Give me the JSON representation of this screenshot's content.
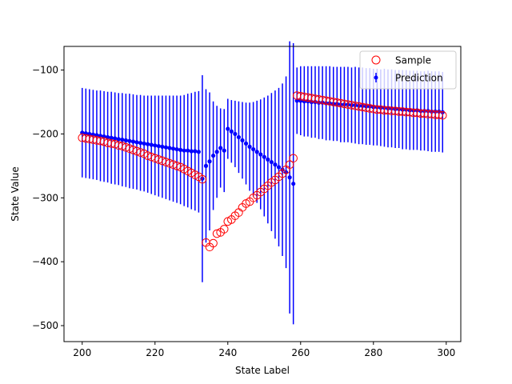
{
  "chart_data": {
    "type": "scatter",
    "title": "",
    "xlabel": "State Label",
    "ylabel": "State Value",
    "xlim": [
      195,
      304
    ],
    "ylim": [
      -525,
      -63
    ],
    "xticks": [
      200,
      220,
      240,
      260,
      280,
      300
    ],
    "yticks": [
      -500,
      -400,
      -300,
      -200,
      -100
    ],
    "xtick_labels": [
      "200",
      "220",
      "240",
      "260",
      "280",
      "300"
    ],
    "ytick_labels": [
      "−500",
      "−400",
      "−300",
      "−200",
      "−100"
    ],
    "grid": false,
    "legend_position": "top-right",
    "legend_entries": [
      "Sample",
      "Prediction"
    ],
    "colors": {
      "sample": "#ff0000",
      "prediction": "#0000ff",
      "axes": "#000000"
    },
    "series": [
      {
        "name": "Sample",
        "marker": "hollow-circle",
        "x": [
          200,
          201,
          202,
          203,
          204,
          205,
          206,
          207,
          208,
          209,
          210,
          211,
          212,
          213,
          214,
          215,
          216,
          217,
          218,
          219,
          220,
          221,
          222,
          223,
          224,
          225,
          226,
          227,
          228,
          229,
          230,
          231,
          232,
          233,
          234,
          235,
          236,
          237,
          238,
          239,
          240,
          241,
          242,
          243,
          244,
          245,
          246,
          247,
          248,
          249,
          250,
          251,
          252,
          253,
          254,
          255,
          256,
          257,
          258,
          259,
          260,
          261,
          262,
          263,
          264,
          265,
          266,
          267,
          268,
          269,
          270,
          271,
          272,
          273,
          274,
          275,
          276,
          277,
          278,
          279,
          280,
          281,
          282,
          283,
          284,
          285,
          286,
          287,
          288,
          289,
          290,
          291,
          292,
          293,
          294,
          295,
          296,
          297,
          298,
          299
        ],
        "y": [
          -206,
          -207,
          -208,
          -209,
          -210,
          -211,
          -212,
          -214,
          -215,
          -216,
          -218,
          -219,
          -221,
          -223,
          -225,
          -227,
          -229,
          -231,
          -234,
          -236,
          -238,
          -240,
          -242,
          -244,
          -246,
          -248,
          -250,
          -252,
          -255,
          -258,
          -261,
          -264,
          -267,
          -271,
          -370,
          -377,
          -371,
          -356,
          -354,
          -349,
          -337,
          -334,
          -328,
          -323,
          -315,
          -309,
          -306,
          -300,
          -296,
          -291,
          -286,
          -281,
          -276,
          -272,
          -267,
          -262,
          -256,
          -248,
          -238,
          -140,
          -141,
          -142,
          -143,
          -144,
          -145,
          -146,
          -147,
          -148,
          -149,
          -150,
          -151,
          -152,
          -153,
          -154,
          -155,
          -156,
          -157,
          -158,
          -159,
          -160,
          -161,
          -162,
          -162,
          -163,
          -163,
          -164,
          -164,
          -165,
          -165,
          -166,
          -166,
          -167,
          -167,
          -168,
          -168,
          -169,
          -169,
          -170,
          -170,
          -171
        ]
      },
      {
        "name": "Prediction",
        "marker": "dot-errorbar",
        "x": [
          200,
          201,
          202,
          203,
          204,
          205,
          206,
          207,
          208,
          209,
          210,
          211,
          212,
          213,
          214,
          215,
          216,
          217,
          218,
          219,
          220,
          221,
          222,
          223,
          224,
          225,
          226,
          227,
          228,
          229,
          230,
          231,
          232,
          233,
          234,
          235,
          236,
          237,
          238,
          239,
          240,
          241,
          242,
          243,
          244,
          245,
          246,
          247,
          248,
          249,
          250,
          251,
          252,
          253,
          254,
          255,
          256,
          257,
          258,
          259,
          260,
          261,
          262,
          263,
          264,
          265,
          266,
          267,
          268,
          269,
          270,
          271,
          272,
          273,
          274,
          275,
          276,
          277,
          278,
          279,
          280,
          281,
          282,
          283,
          284,
          285,
          286,
          287,
          288,
          289,
          290,
          291,
          292,
          293,
          294,
          295,
          296,
          297,
          298,
          299
        ],
        "y": [
          -198,
          -199,
          -200,
          -201,
          -202,
          -203,
          -204,
          -205,
          -206,
          -207,
          -208,
          -209,
          -210,
          -211,
          -212,
          -213,
          -214,
          -215,
          -216,
          -217,
          -218,
          -219,
          -220,
          -221,
          -222,
          -223,
          -224,
          -225,
          -226,
          -226,
          -227,
          -227,
          -228,
          -270,
          -250,
          -243,
          -234,
          -228,
          -222,
          -226,
          -192,
          -196,
          -200,
          -205,
          -210,
          -215,
          -220,
          -224,
          -228,
          -232,
          -236,
          -240,
          -244,
          -248,
          -252,
          -256,
          -260,
          -268,
          -278,
          -148,
          -148,
          -149,
          -149,
          -150,
          -150,
          -151,
          -151,
          -152,
          -152,
          -153,
          -153,
          -154,
          -154,
          -154,
          -155,
          -155,
          -156,
          -156,
          -157,
          -157,
          -158,
          -158,
          -159,
          -159,
          -160,
          -160,
          -161,
          -161,
          -162,
          -162,
          -163,
          -163,
          -163,
          -164,
          -164,
          -164,
          -165,
          -165,
          -165,
          -166
        ],
        "error": [
          70,
          70,
          70,
          70,
          70,
          71,
          71,
          71,
          72,
          72,
          72,
          73,
          73,
          74,
          74,
          74,
          75,
          75,
          76,
          77,
          78,
          79,
          80,
          81,
          82,
          83,
          84,
          85,
          87,
          89,
          91,
          93,
          95,
          162,
          120,
          108,
          85,
          72,
          62,
          65,
          47,
          49,
          52,
          56,
          60,
          64,
          69,
          74,
          80,
          86,
          93,
          100,
          108,
          116,
          124,
          135,
          150,
          213,
          220,
          52,
          54,
          55,
          55,
          56,
          56,
          57,
          57,
          58,
          58,
          58,
          58,
          59,
          59,
          59,
          59,
          60,
          60,
          60,
          60,
          60,
          60,
          60,
          60,
          61,
          61,
          61,
          61,
          61,
          62,
          62,
          62,
          62,
          62,
          62,
          62,
          63,
          63,
          63,
          63,
          63
        ]
      }
    ]
  }
}
